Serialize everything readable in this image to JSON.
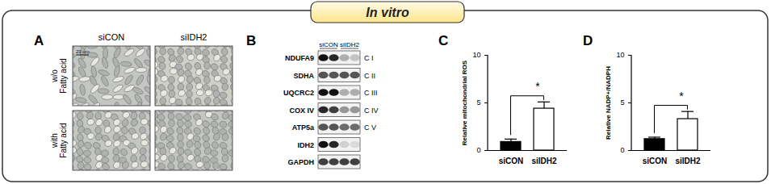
{
  "banner": "In vitro",
  "panel_letters": [
    "A",
    "B",
    "C",
    "D"
  ],
  "panel_a": {
    "columns": [
      "siCON",
      "siIDH2"
    ],
    "rows": [
      [
        "w/o",
        "Fatty acid"
      ],
      [
        "with",
        "Fatty acid"
      ]
    ],
    "scale_bar": "20 um"
  },
  "panel_b": {
    "groups": [
      "siCON",
      "siIDH2"
    ],
    "rows": [
      {
        "protein": "NDUFA9",
        "complex": "C I",
        "intensity": [
          1.0,
          0.9,
          0.3,
          0.2
        ]
      },
      {
        "protein": "SDHA",
        "complex": "C II",
        "intensity": [
          0.7,
          0.7,
          0.7,
          0.7
        ]
      },
      {
        "protein": "UQCRC2",
        "complex": "C III",
        "intensity": [
          1.0,
          1.0,
          0.3,
          0.3
        ]
      },
      {
        "protein": "COX IV",
        "complex": "C IV",
        "intensity": [
          0.9,
          0.8,
          0.4,
          0.4
        ]
      },
      {
        "protein": "ATP5a",
        "complex": "C V",
        "intensity": [
          0.7,
          0.7,
          0.6,
          0.6
        ]
      },
      {
        "protein": "IDH2",
        "complex": null,
        "intensity": [
          1.0,
          0.9,
          0.15,
          0.1
        ]
      },
      {
        "protein": "GAPDH",
        "complex": null,
        "intensity": [
          0.8,
          0.8,
          0.8,
          0.8
        ]
      }
    ]
  },
  "chart_data": [
    {
      "type": "bar",
      "ylabel": "Relative mitochondrial ROS",
      "categories": [
        "siCON",
        "siIDH2"
      ],
      "values": [
        0.9,
        4.4
      ],
      "errors": [
        0.3,
        0.7
      ],
      "colors": [
        "#000000",
        "#ffffff"
      ],
      "ylim": [
        0,
        10
      ],
      "yticks": [
        0,
        5,
        10
      ],
      "significance": "*"
    },
    {
      "type": "bar",
      "ylabel": "Relative NADP+/NADPH",
      "categories": [
        "siCON",
        "siIDH2"
      ],
      "values": [
        1.2,
        3.3
      ],
      "errors": [
        0.2,
        0.8
      ],
      "colors": [
        "#000000",
        "#ffffff"
      ],
      "ylim": [
        0,
        10
      ],
      "yticks": [
        0,
        5,
        10
      ],
      "significance": "*"
    }
  ]
}
